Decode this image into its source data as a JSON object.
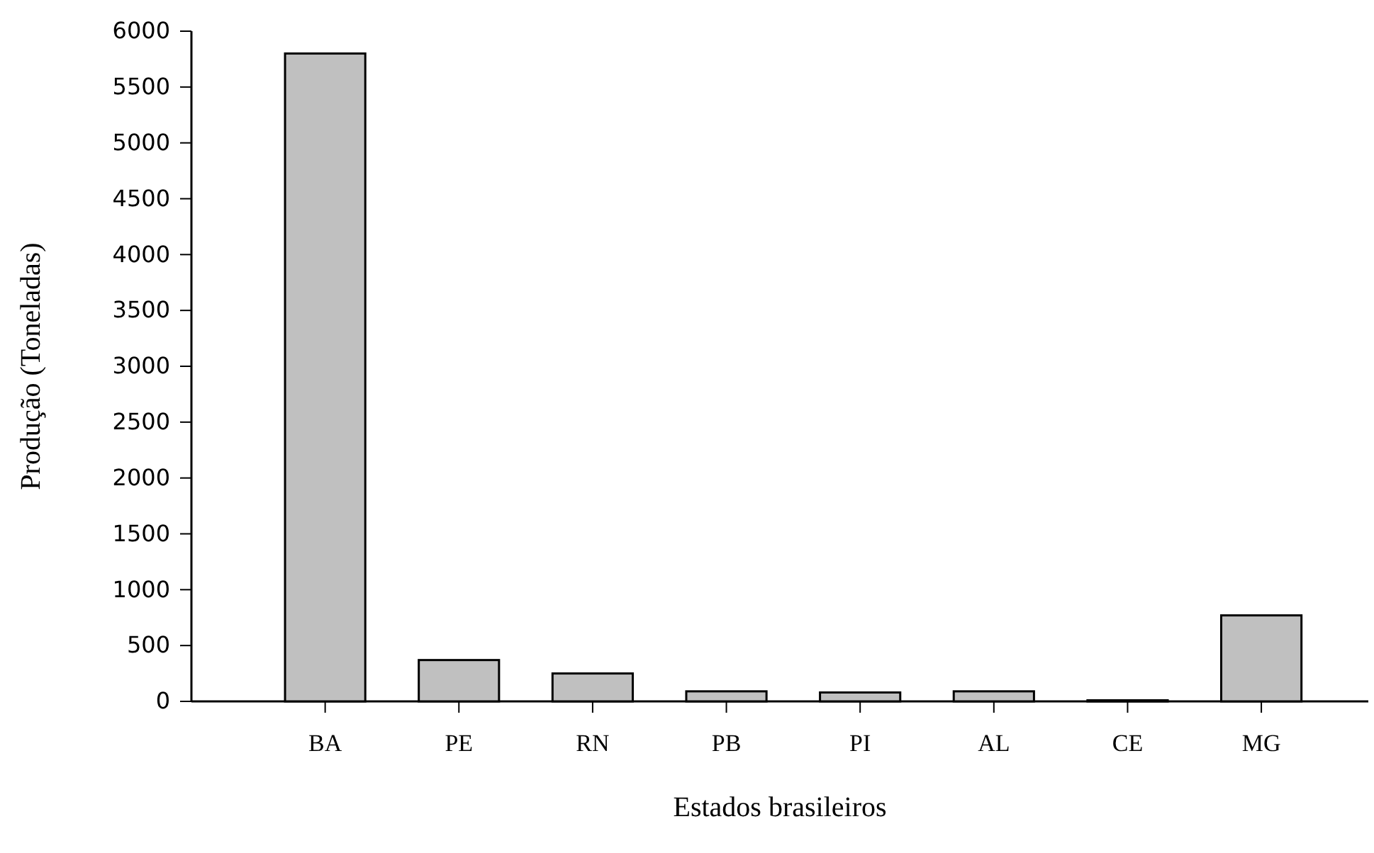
{
  "chart_data": {
    "type": "bar",
    "xlabel": "Estados brasileiros",
    "ylabel": "Produção (Toneladas)",
    "categories": [
      "BA",
      "PE",
      "RN",
      "PB",
      "PI",
      "AL",
      "CE",
      "MG"
    ],
    "values": [
      5800,
      370,
      250,
      90,
      80,
      90,
      10,
      770
    ],
    "color": "#c0c0c0",
    "ylim": [
      0,
      6000
    ],
    "yticks": [
      0,
      500,
      1000,
      1500,
      2000,
      2500,
      3000,
      3500,
      4000,
      4500,
      5000,
      5500,
      6000
    ],
    "grid": false
  }
}
